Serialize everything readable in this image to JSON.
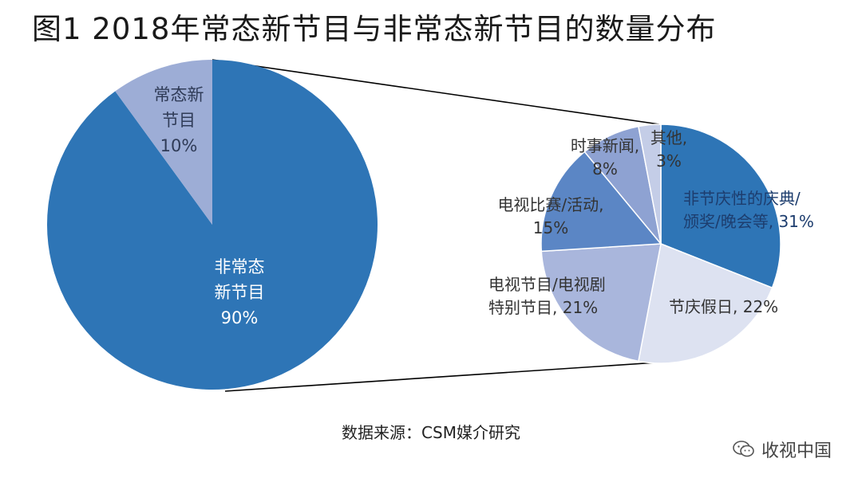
{
  "title": "图1  2018年常态新节目与非常态新节目的数量分布",
  "source": "数据来源：CSM媒介研究",
  "watermark": {
    "text": "收视中国",
    "icon": "wechat-icon"
  },
  "colors": {
    "main_large": "#2e75b6",
    "main_small": "#9dadd6",
    "label_dark": "#ffffff",
    "label_light": "#2f3b57",
    "connector": "#000000"
  },
  "chart_data": [
    {
      "type": "pie",
      "title": "",
      "slices": [
        {
          "name": "非常态新节目",
          "value": 90,
          "label": [
            "非常态",
            "新节目",
            "90%"
          ],
          "color": "#2e75b6"
        },
        {
          "name": "常态新节目",
          "value": 10,
          "label": [
            "常态新",
            "节目",
            "10%"
          ],
          "color": "#9dadd6"
        }
      ]
    },
    {
      "type": "pie",
      "title": "",
      "slices": [
        {
          "name": "非节庆性的庆典/颁奖/晚会等",
          "value": 31,
          "label": [
            "非节庆性的庆典/",
            "颁奖/晚会等, 31%"
          ],
          "color": "#2e75b6"
        },
        {
          "name": "节庆假日",
          "value": 22,
          "label": [
            "节庆假日, 22%"
          ],
          "color": "#dde2f1"
        },
        {
          "name": "电视节目/电视剧特别节目",
          "value": 21,
          "label": [
            "电视节目/电视剧",
            "特别节目, 21%"
          ],
          "color": "#a9b6dc"
        },
        {
          "name": "电视比赛/活动",
          "value": 15,
          "label": [
            "电视比赛/活动,",
            "15%"
          ],
          "color": "#5b86c5"
        },
        {
          "name": "时事新闻",
          "value": 8,
          "label": [
            "时事新闻,",
            "8%"
          ],
          "color": "#8ea2d2"
        },
        {
          "name": "其他",
          "value": 3,
          "label": [
            "其他,",
            "3%"
          ],
          "color": "#c4cde7"
        }
      ]
    }
  ]
}
